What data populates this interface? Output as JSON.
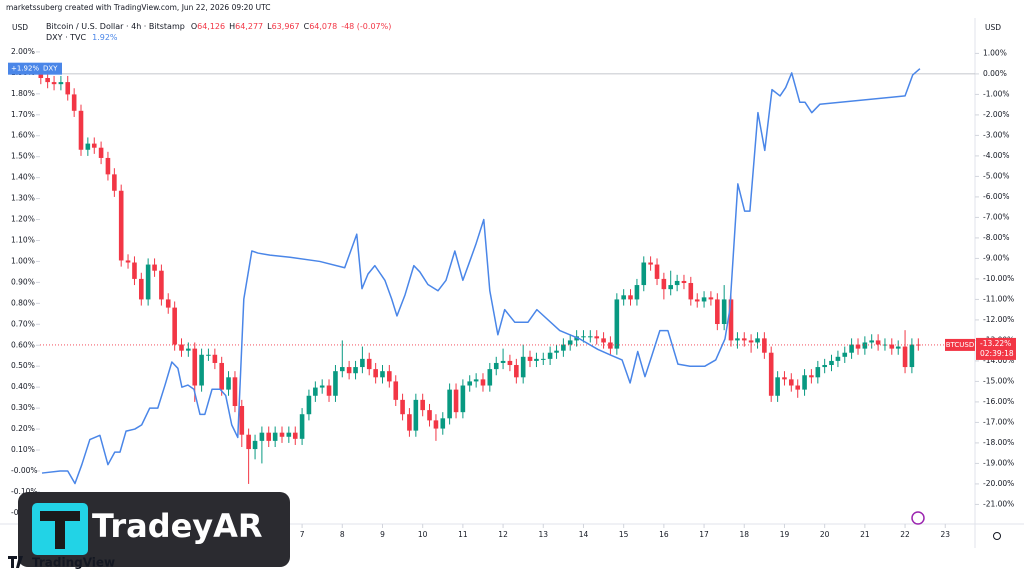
{
  "chart_data": {
    "type": "candlestick",
    "header": "marketssuberg created with TradingView.com, Jun 22, 2026 09:20 UTC",
    "currency_left": "USD",
    "currency_right": "USD",
    "xlim": [
      0.48,
      23.74
    ],
    "xticks": [
      7,
      8,
      9,
      10,
      11,
      12,
      13,
      14,
      15,
      16,
      17,
      18,
      19,
      20,
      21,
      22,
      23
    ],
    "ylim": [
      -0.234,
      2.033
    ],
    "yticks": [
      {
        "value": 2.0,
        "label": "2.00%"
      },
      {
        "value": 1.9,
        "label": "1.90%"
      },
      {
        "value": 1.8,
        "label": "1.80%"
      },
      {
        "value": 1.7,
        "label": "1.70%"
      },
      {
        "value": 1.6,
        "label": "1.60%"
      },
      {
        "value": 1.5,
        "label": "1.50%"
      },
      {
        "value": 1.4,
        "label": "1.40%"
      },
      {
        "value": 1.3,
        "label": "1.30%"
      },
      {
        "value": 1.2,
        "label": "1.20%"
      },
      {
        "value": 1.1,
        "label": "1.10%"
      },
      {
        "value": 1.0,
        "label": "1.00%"
      },
      {
        "value": 0.9,
        "label": "0.90%"
      },
      {
        "value": 0.8,
        "label": "0.80%"
      },
      {
        "value": 0.7,
        "label": "0.70%"
      },
      {
        "value": 0.6,
        "label": "0.60%"
      },
      {
        "value": 0.5,
        "label": "0.50%"
      },
      {
        "value": 0.4,
        "label": "0.40%"
      },
      {
        "value": 0.3,
        "label": "0.30%"
      },
      {
        "value": 0.2,
        "label": "0.20%"
      },
      {
        "value": 0.1,
        "label": "0.10%"
      },
      {
        "value": 0,
        "label": "-0.00%"
      },
      {
        "value": -0.1,
        "label": "-0.10%"
      },
      {
        "value": -0.2,
        "label": "-0.20%"
      }
    ],
    "y2lim": [
      -21.76,
      1.41
    ],
    "y2ticks": [
      {
        "value": 1,
        "label": "1.00%"
      },
      {
        "value": 0,
        "label": "0.00%"
      },
      {
        "value": -1,
        "label": "-1.00%"
      },
      {
        "value": -2,
        "label": "-2.00%"
      },
      {
        "value": -3,
        "label": "-3.00%"
      },
      {
        "value": -4,
        "label": "-4.00%"
      },
      {
        "value": -5,
        "label": "-5.00%"
      },
      {
        "value": -6,
        "label": "-6.00%"
      },
      {
        "value": -7,
        "label": "-7.00%"
      },
      {
        "value": -8,
        "label": "-8.00%"
      },
      {
        "value": -9,
        "label": "-9.00%"
      },
      {
        "value": -10,
        "label": "-10.00%"
      },
      {
        "value": -11,
        "label": "-11.00%"
      },
      {
        "value": -12,
        "label": "-12.00%"
      },
      {
        "value": -13,
        "label": "-13.00%"
      },
      {
        "value": -14,
        "label": "-14.00%"
      },
      {
        "value": -15,
        "label": "-15.00%"
      },
      {
        "value": -16,
        "label": "-16.00%"
      },
      {
        "value": -17,
        "label": "-17.00%"
      },
      {
        "value": -18,
        "label": "-18.00%"
      },
      {
        "value": -19,
        "label": "-19.00%"
      },
      {
        "value": -20,
        "label": "-20.00%"
      },
      {
        "value": -21,
        "label": "-21.00%"
      }
    ],
    "series": [
      {
        "name": "Bitcoin / U.S. Dollar · 4h · Bitstamp",
        "type": "candlestick",
        "axis": "y2",
        "up_color": "#089981",
        "down_color": "#f23645",
        "ohlc": [
          {
            "key": "O",
            "value": "64,126"
          },
          {
            "key": "H",
            "value": "64,277"
          },
          {
            "key": "L",
            "value": "63,967"
          },
          {
            "key": "C",
            "value": "64,078"
          }
        ],
        "change": "-48 (-0.07%)",
        "badge_symbol": "BTCUSD",
        "badge_label": "-13.22%",
        "countdown": "02:39:18",
        "x": [
          0.5,
          0.67,
          0.83,
          1,
          1.17,
          1.33,
          1.5,
          1.67,
          1.83,
          2,
          2.17,
          2.33,
          2.5,
          2.67,
          2.83,
          3,
          3.17,
          3.33,
          3.5,
          3.67,
          3.83,
          4,
          4.17,
          4.33,
          4.5,
          4.67,
          4.83,
          5,
          5.17,
          5.33,
          5.5,
          5.67,
          5.83,
          6,
          6.17,
          6.33,
          6.5,
          6.67,
          6.83,
          7,
          7.17,
          7.33,
          7.5,
          7.67,
          7.83,
          8,
          8.17,
          8.33,
          8.5,
          8.67,
          8.83,
          9,
          9.17,
          9.33,
          9.5,
          9.67,
          9.83,
          10,
          10.17,
          10.33,
          10.5,
          10.67,
          10.83,
          11,
          11.17,
          11.33,
          11.5,
          11.67,
          11.83,
          12,
          12.17,
          12.33,
          12.5,
          12.67,
          12.83,
          13,
          13.17,
          13.33,
          13.5,
          13.67,
          13.83,
          14,
          14.17,
          14.33,
          14.5,
          14.67,
          14.83,
          15,
          15.17,
          15.33,
          15.5,
          15.67,
          15.83,
          16,
          16.17,
          16.33,
          16.5,
          16.67,
          16.83,
          17,
          17.17,
          17.33,
          17.5,
          17.67,
          17.83,
          18,
          18.17,
          18.33,
          18.5,
          18.67,
          18.83,
          19,
          19.17,
          19.33,
          19.5,
          19.67,
          19.83,
          20,
          20.17,
          20.33,
          20.5,
          20.67,
          20.83,
          21,
          21.17,
          21.33,
          21.5,
          21.67,
          21.83,
          22,
          22.17,
          22.33
        ],
        "open": [
          0,
          -0.2,
          -0.4,
          -0.5,
          -0.4,
          -1.0,
          -1.8,
          -3.7,
          -3.4,
          -3.6,
          -4.1,
          -4.9,
          -5.7,
          -9.1,
          -9.2,
          -10.0,
          -11.0,
          -9.3,
          -9.6,
          -11.0,
          -11.4,
          -13.2,
          -13.5,
          -13.4,
          -15.2,
          -13.7,
          -13.7,
          -14.1,
          -15.4,
          -14.8,
          -16.2,
          -17.6,
          -18.3,
          -17.9,
          -17.5,
          -17.9,
          -17.5,
          -17.7,
          -17.5,
          -17.8,
          -16.6,
          -15.7,
          -15.3,
          -15.2,
          -15.7,
          -14.5,
          -14.3,
          -14.6,
          -14.3,
          -13.9,
          -14.4,
          -14.8,
          -14.5,
          -15.0,
          -15.9,
          -16.6,
          -17.4,
          -15.9,
          -16.4,
          -16.9,
          -17.3,
          -16.8,
          -15.4,
          -16.5,
          -15.2,
          -15.0,
          -14.9,
          -15.2,
          -14.4,
          -14.1,
          -14.0,
          -14.2,
          -14.8,
          -13.8,
          -14.0,
          -13.9,
          -13.9,
          -13.6,
          -13.5,
          -13.2,
          -13.0,
          -12.8,
          -12.8,
          -12.8,
          -12.9,
          -13.1,
          -13.4,
          -11.0,
          -10.8,
          -11.0,
          -10.3,
          -9.2,
          -9.3,
          -10.0,
          -10.5,
          -10.3,
          -10.1,
          -10.2,
          -11.0,
          -11.1,
          -10.9,
          -11.0,
          -12.2,
          -11.0,
          -13.0,
          -12.9,
          -13.0,
          -13.1,
          -12.9,
          -13.6,
          -15.7,
          -14.8,
          -14.9,
          -15.2,
          -15.4,
          -14.7,
          -14.8,
          -14.3,
          -14.2,
          -14.0,
          -13.8,
          -13.6,
          -13.2,
          -13.4,
          -13.1,
          -13.0,
          -13.2,
          -13.2,
          -13.4,
          -13.3,
          -14.3,
          -13.2
        ],
        "high": [
          0.3,
          0.1,
          -0.1,
          -0.1,
          -0.1,
          -0.7,
          -1.5,
          -3.1,
          -3.1,
          -3.3,
          -3.8,
          -4.6,
          -5.4,
          -8.8,
          -8.9,
          -9.7,
          -9.0,
          -9.0,
          -9.3,
          -10.7,
          -11.1,
          -12.9,
          -13.1,
          -13.1,
          -13.4,
          -13.4,
          -13.4,
          -13.8,
          -14.5,
          -14.5,
          -15.9,
          -17.3,
          -17.6,
          -17.2,
          -17.2,
          -17.2,
          -17.2,
          -17.2,
          -17.2,
          -16.3,
          -15.4,
          -15.0,
          -14.9,
          -14.9,
          -14.2,
          -13.0,
          -14.0,
          -14.0,
          -13.3,
          -13.6,
          -14.1,
          -14.2,
          -14.2,
          -14.7,
          -15.6,
          -16.3,
          -15.6,
          -15.6,
          -16.1,
          -16.6,
          -16.5,
          -15.1,
          -15.1,
          -14.9,
          -14.7,
          -14.6,
          -14.6,
          -14.1,
          -13.8,
          -13.4,
          -13.7,
          -13.9,
          -13.2,
          -13.5,
          -13.6,
          -13.6,
          -13.3,
          -13.2,
          -12.9,
          -12.7,
          -12.5,
          -12.5,
          -12.5,
          -12.5,
          -12.6,
          -12.8,
          -10.7,
          -10.5,
          -10.5,
          -10.0,
          -8.9,
          -8.9,
          -9.0,
          -9.7,
          -9.6,
          -9.8,
          -9.8,
          -9.9,
          -10.7,
          -10.6,
          -10.6,
          -10.7,
          -10.3,
          -10.7,
          -12.6,
          -12.6,
          -12.7,
          -12.6,
          -12.6,
          -13.3,
          -14.5,
          -14.5,
          -14.6,
          -14.9,
          -14.4,
          -14.4,
          -14.0,
          -13.9,
          -13.7,
          -13.5,
          -13.3,
          -12.9,
          -12.9,
          -12.8,
          -12.7,
          -12.7,
          -12.9,
          -12.9,
          -13.0,
          -12.5,
          -12.9,
          -12.9
        ],
        "low": [
          -0.5,
          -0.7,
          -0.8,
          -0.8,
          -1.3,
          -2.1,
          -4.0,
          -4.0,
          -3.9,
          -4.4,
          -5.2,
          -6.0,
          -9.4,
          -9.5,
          -10.3,
          -11.3,
          -11.3,
          -9.9,
          -11.3,
          -11.7,
          -13.5,
          -13.8,
          -13.8,
          -16.0,
          -15.5,
          -14.0,
          -14.4,
          -15.7,
          -15.7,
          -16.5,
          -18.2,
          -20.0,
          -18.8,
          -19.0,
          -18.2,
          -18.2,
          -18.0,
          -18.0,
          -18.1,
          -18.1,
          -16.9,
          -16.0,
          -15.6,
          -16.0,
          -16.0,
          -14.8,
          -14.9,
          -14.9,
          -14.6,
          -14.7,
          -15.1,
          -15.1,
          -15.3,
          -16.2,
          -16.9,
          -17.7,
          -17.7,
          -16.7,
          -17.2,
          -17.9,
          -17.6,
          -17.1,
          -16.8,
          -16.8,
          -15.5,
          -15.3,
          -15.5,
          -15.5,
          -14.7,
          -14.4,
          -14.5,
          -15.1,
          -15.1,
          -14.3,
          -14.3,
          -14.2,
          -14.2,
          -13.9,
          -13.8,
          -13.5,
          -13.3,
          -13.1,
          -13.1,
          -13.2,
          -13.4,
          -13.7,
          -13.7,
          -11.3,
          -11.3,
          -11.3,
          -10.6,
          -9.6,
          -10.3,
          -11.0,
          -10.8,
          -10.6,
          -10.5,
          -11.3,
          -11.4,
          -11.4,
          -11.3,
          -12.5,
          -12.5,
          -13.3,
          -13.4,
          -13.3,
          -13.6,
          -13.4,
          -13.9,
          -16.0,
          -16.0,
          -15.2,
          -15.5,
          -15.8,
          -15.7,
          -15.1,
          -15.1,
          -14.6,
          -14.5,
          -14.3,
          -14.1,
          -13.9,
          -13.7,
          -13.7,
          -13.4,
          -13.5,
          -13.5,
          -13.7,
          -13.7,
          -14.6,
          -14.6,
          -13.5
        ],
        "close": [
          -0.2,
          -0.4,
          -0.5,
          -0.4,
          -1.0,
          -1.8,
          -3.7,
          -3.4,
          -3.6,
          -4.1,
          -4.9,
          -5.7,
          -9.1,
          -9.2,
          -10.0,
          -11.0,
          -9.3,
          -9.6,
          -11.0,
          -11.4,
          -13.2,
          -13.5,
          -13.4,
          -15.2,
          -13.7,
          -13.7,
          -14.1,
          -15.4,
          -14.8,
          -16.2,
          -17.6,
          -18.3,
          -17.9,
          -17.5,
          -17.9,
          -17.5,
          -17.7,
          -17.5,
          -17.8,
          -16.6,
          -15.7,
          -15.3,
          -15.2,
          -15.7,
          -14.5,
          -14.3,
          -14.6,
          -14.3,
          -13.9,
          -14.4,
          -14.8,
          -14.5,
          -15.0,
          -15.9,
          -16.6,
          -17.4,
          -15.9,
          -16.4,
          -16.9,
          -17.3,
          -16.8,
          -15.4,
          -16.5,
          -15.2,
          -15.0,
          -14.9,
          -15.2,
          -14.4,
          -14.1,
          -14.0,
          -14.2,
          -14.8,
          -13.8,
          -14.0,
          -13.9,
          -13.9,
          -13.6,
          -13.5,
          -13.2,
          -13.0,
          -12.8,
          -12.8,
          -12.8,
          -12.9,
          -13.1,
          -13.4,
          -11.0,
          -10.8,
          -11.0,
          -10.3,
          -9.2,
          -9.3,
          -10.0,
          -10.5,
          -10.3,
          -10.1,
          -10.2,
          -11.0,
          -11.1,
          -10.9,
          -11.0,
          -12.2,
          -11.0,
          -13.0,
          -12.9,
          -13.0,
          -13.1,
          -12.9,
          -13.6,
          -15.7,
          -14.8,
          -14.9,
          -15.2,
          -15.4,
          -14.7,
          -14.8,
          -14.3,
          -14.2,
          -14.0,
          -13.8,
          -13.6,
          -13.2,
          -13.4,
          -13.1,
          -13.0,
          -13.2,
          -13.2,
          -13.4,
          -13.3,
          -14.3,
          -13.2,
          -13.22
        ]
      },
      {
        "name": "DXY · TVC",
        "type": "line",
        "axis": "y",
        "color": "#4a86e8",
        "value_label": "1.92%",
        "badge_symbol": "DXY",
        "badge_label": "+1.92%",
        "x": [
          0.53,
          0.98,
          1.17,
          1.35,
          1.52,
          1.72,
          1.97,
          2.17,
          2.34,
          2.47,
          2.62,
          2.84,
          3.01,
          3.21,
          3.41,
          3.59,
          3.76,
          3.91,
          4.01,
          4.16,
          4.31,
          4.46,
          4.58,
          4.76,
          4.96,
          5.1,
          5.25,
          5.4,
          5.55,
          5.75,
          5.9,
          6.2,
          6.7,
          7.44,
          8.06,
          8.36,
          8.49,
          8.64,
          8.81,
          9.06,
          9.23,
          9.36,
          9.56,
          9.78,
          9.93,
          10.13,
          10.38,
          10.58,
          10.8,
          11.0,
          11.17,
          11.32,
          11.52,
          11.67,
          11.87,
          12.04,
          12.29,
          12.62,
          12.84,
          13.41,
          13.91,
          14.36,
          14.71,
          14.96,
          15.16,
          15.35,
          15.53,
          15.7,
          15.9,
          16.1,
          16.35,
          16.65,
          17.02,
          17.29,
          17.52,
          17.64,
          17.84,
          18.01,
          18.14,
          18.34,
          18.51,
          18.69,
          18.89,
          19.03,
          19.18,
          19.38,
          19.51,
          19.68,
          19.88,
          22.0,
          22.19,
          22.37
        ],
        "values": [
          -0.01,
          0.0,
          0.0,
          -0.06,
          0.03,
          0.15,
          0.17,
          0.03,
          0.09,
          0.09,
          0.19,
          0.2,
          0.22,
          0.3,
          0.3,
          0.41,
          0.52,
          0.49,
          0.4,
          0.41,
          0.39,
          0.27,
          0.27,
          0.39,
          0.39,
          0.36,
          0.22,
          0.16,
          0.82,
          1.05,
          1.04,
          1.03,
          1.02,
          1.0,
          0.97,
          1.13,
          0.87,
          0.94,
          0.98,
          0.91,
          0.82,
          0.74,
          0.84,
          0.98,
          0.95,
          0.89,
          0.86,
          0.91,
          1.05,
          0.91,
          1.0,
          1.08,
          1.2,
          0.86,
          0.65,
          0.77,
          0.71,
          0.71,
          0.77,
          0.67,
          0.63,
          0.58,
          0.55,
          0.53,
          0.42,
          0.57,
          0.45,
          0.55,
          0.67,
          0.67,
          0.51,
          0.5,
          0.5,
          0.53,
          0.63,
          0.77,
          1.37,
          1.24,
          1.24,
          1.71,
          1.53,
          1.82,
          1.79,
          1.83,
          1.9,
          1.76,
          1.76,
          1.71,
          1.75,
          1.79,
          1.89,
          1.92
        ]
      }
    ]
  },
  "overlay": {
    "brand": "TradeyAR",
    "tradingview": "TradingView"
  }
}
